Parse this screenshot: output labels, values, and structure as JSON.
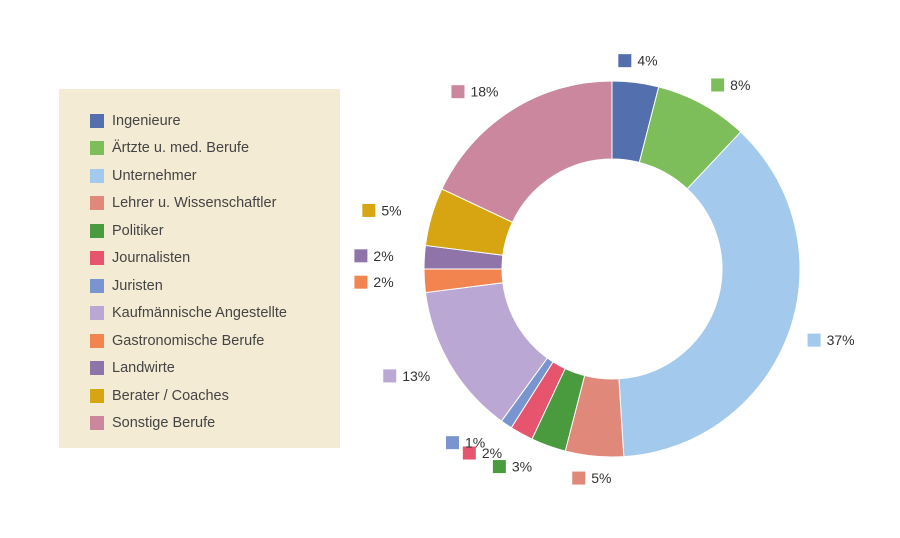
{
  "chart_data": {
    "type": "pie",
    "variant": "donut",
    "legend_position": "left",
    "categories": [
      "Ingenieure",
      "Ärtzte u. med. Berufe",
      "Unternehmer",
      "Lehrer u. Wissenschaftler",
      "Politiker",
      "Journalisten",
      "Juristen",
      "Kaufmännische Angestellte",
      "Gastronomische Berufe",
      "Landwirte",
      "Berater / Coaches",
      "Sonstige Berufe"
    ],
    "values": [
      4,
      8,
      37,
      5,
      3,
      2,
      1,
      13,
      2,
      2,
      5,
      18
    ],
    "data_labels": [
      "4%",
      "8%",
      "37%",
      "5%",
      "3%",
      "2%",
      "1%",
      "13%",
      "2%",
      "2%",
      "5%",
      "18%"
    ],
    "colors": [
      "#536fae",
      "#7dbd5a",
      "#a3c9ed",
      "#e0887a",
      "#4a9a3e",
      "#e6546e",
      "#7895d0",
      "#bba7d3",
      "#f2844f",
      "#8e74a8",
      "#d6a511",
      "#ca879d"
    ]
  }
}
